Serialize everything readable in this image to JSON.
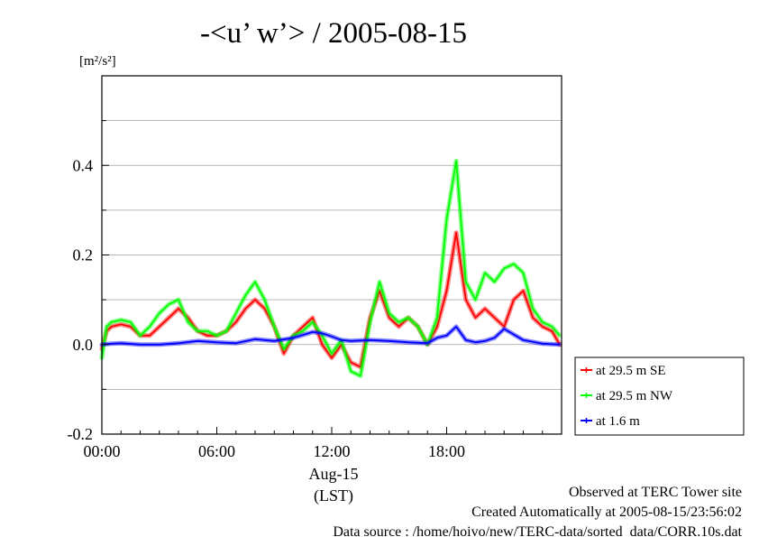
{
  "chart_data": {
    "type": "line",
    "title": "-<u’ w’> / 2005-08-15",
    "ylabel_unit": "[m²/s²]",
    "xlim": [
      0,
      24
    ],
    "ylim": [
      -0.2,
      0.6
    ],
    "x_ticks": [
      {
        "value": 0,
        "label": "00:00"
      },
      {
        "value": 6,
        "label": "06:00"
      },
      {
        "value": 12,
        "label": "12:00"
      },
      {
        "value": 18,
        "label": "18:00"
      }
    ],
    "x_date_label": "Aug-15",
    "x_tz_label": "(LST)",
    "y_ticks": [
      {
        "value": -0.2,
        "label": "-0.2"
      },
      {
        "value": 0.0,
        "label": "0.0"
      },
      {
        "value": 0.2,
        "label": "0.2"
      },
      {
        "value": 0.4,
        "label": "0.4"
      }
    ],
    "y_minor_ticks": [
      -0.1,
      0.1,
      0.3,
      0.5
    ],
    "grid": true,
    "legend_position": "right-outside",
    "series": [
      {
        "name": "at 29.5 m SE",
        "color": "#ff0000",
        "x": [
          0,
          0.25,
          0.5,
          1,
          1.5,
          2,
          2.5,
          3,
          3.5,
          4,
          4.5,
          5,
          5.5,
          6,
          6.5,
          7,
          7.5,
          8,
          8.5,
          9,
          9.5,
          10,
          10.5,
          11,
          11.5,
          12,
          12.5,
          13,
          13.5,
          14,
          14.5,
          15,
          15.5,
          16,
          16.5,
          17,
          17.5,
          18,
          18.5,
          19,
          19.5,
          20,
          20.5,
          21,
          21.5,
          22,
          22.5,
          23,
          23.5,
          23.9
        ],
        "values": [
          -0.01,
          0.03,
          0.04,
          0.045,
          0.04,
          0.02,
          0.02,
          0.04,
          0.06,
          0.08,
          0.06,
          0.03,
          0.02,
          0.02,
          0.03,
          0.05,
          0.08,
          0.1,
          0.08,
          0.04,
          -0.02,
          0.02,
          0.04,
          0.06,
          0.0,
          -0.03,
          0.0,
          -0.04,
          -0.05,
          0.06,
          0.12,
          0.06,
          0.04,
          0.06,
          0.04,
          0.0,
          0.04,
          0.12,
          0.25,
          0.1,
          0.06,
          0.08,
          0.06,
          0.04,
          0.1,
          0.12,
          0.06,
          0.04,
          0.03,
          0.0
        ]
      },
      {
        "name": "at 29.5 m NW",
        "color": "#00ff00",
        "x": [
          0,
          0.25,
          0.5,
          1,
          1.5,
          2,
          2.5,
          3,
          3.5,
          4,
          4.5,
          5,
          5.5,
          6,
          6.5,
          7,
          7.5,
          8,
          8.5,
          9,
          9.5,
          10,
          10.5,
          11,
          11.5,
          12,
          12.5,
          13,
          13.5,
          14,
          14.5,
          15,
          15.5,
          16,
          16.5,
          17,
          17.5,
          18,
          18.5,
          19,
          19.5,
          20,
          20.5,
          21,
          21.5,
          22,
          22.5,
          23,
          23.5,
          23.9
        ],
        "values": [
          -0.03,
          0.04,
          0.05,
          0.055,
          0.05,
          0.02,
          0.04,
          0.07,
          0.09,
          0.1,
          0.05,
          0.03,
          0.03,
          0.02,
          0.03,
          0.07,
          0.11,
          0.14,
          0.1,
          0.04,
          -0.01,
          0.02,
          0.03,
          0.05,
          0.02,
          -0.02,
          0.01,
          -0.06,
          -0.07,
          0.05,
          0.14,
          0.07,
          0.05,
          0.06,
          0.04,
          0.0,
          0.06,
          0.28,
          0.41,
          0.14,
          0.1,
          0.16,
          0.14,
          0.17,
          0.18,
          0.16,
          0.08,
          0.05,
          0.04,
          0.02
        ]
      },
      {
        "name": "at 1.6 m",
        "color": "#0000ff",
        "x": [
          0,
          0.5,
          1,
          2,
          3,
          4,
          5,
          6,
          7,
          8,
          9,
          10,
          11,
          11.5,
          12,
          12.5,
          13,
          14,
          15,
          16,
          17,
          17.5,
          18,
          18.5,
          19,
          19.5,
          20,
          20.5,
          21,
          22,
          23,
          23.9
        ],
        "values": [
          0.0,
          0.002,
          0.003,
          0.0,
          0.0,
          0.003,
          0.008,
          0.005,
          0.003,
          0.012,
          0.008,
          0.015,
          0.028,
          0.025,
          0.018,
          0.01,
          0.008,
          0.01,
          0.008,
          0.005,
          0.003,
          0.015,
          0.02,
          0.04,
          0.01,
          0.005,
          0.008,
          0.015,
          0.035,
          0.01,
          0.002,
          0.0
        ]
      }
    ],
    "footer": {
      "line1": "Observed at TERC Tower site",
      "line2": "Created Automatically at 2005-08-15/23:56:02",
      "line3": "Data source : /home/hoivo/new/TERC-data/sorted_data/CORR.10s.dat"
    }
  }
}
